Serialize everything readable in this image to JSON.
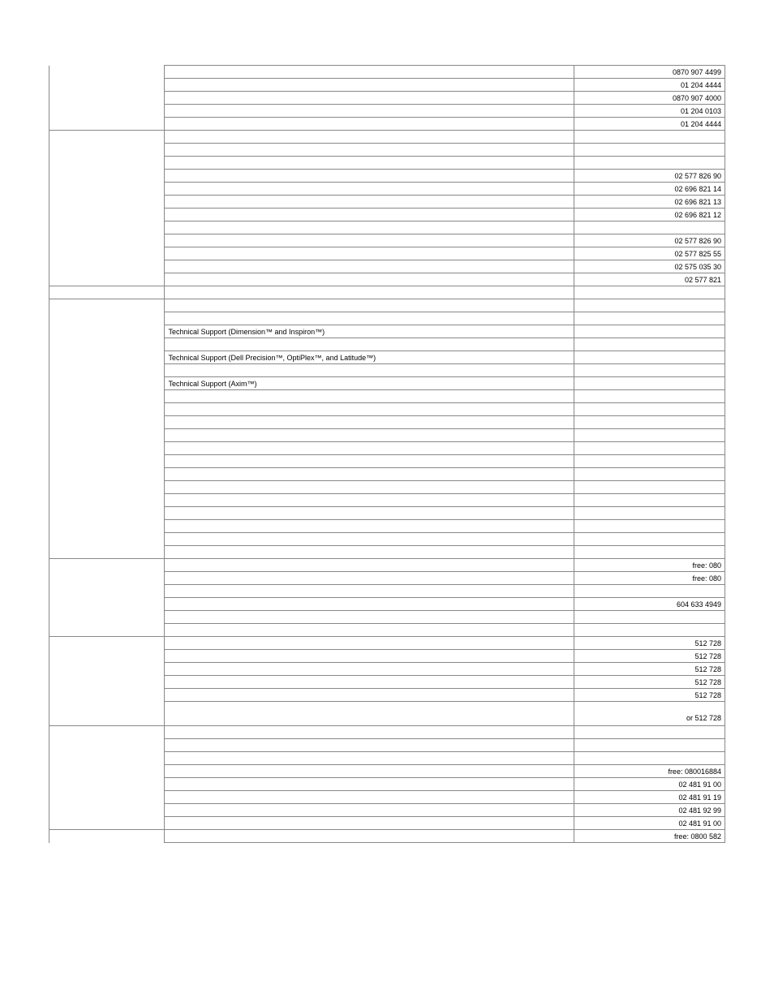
{
  "rows": [
    {
      "desc": "",
      "num": "0870 907 4499"
    },
    {
      "desc": "",
      "num": "01 204 4444"
    },
    {
      "desc": "",
      "num": "0870 907 4000"
    },
    {
      "desc": "",
      "num": "01 204 0103"
    },
    {
      "desc": "",
      "num": "01 204 4444",
      "countryBreak": true
    },
    {
      "desc": "",
      "num": ""
    },
    {
      "desc": "",
      "num": ""
    },
    {
      "desc": "",
      "num": ""
    },
    {
      "desc": "",
      "num": "02 577 826 90"
    },
    {
      "desc": "",
      "num": "02 696 821 14"
    },
    {
      "desc": "",
      "num": "02 696 821 13"
    },
    {
      "desc": "",
      "num": "02 696 821 12"
    },
    {
      "desc": "",
      "num": ""
    },
    {
      "desc": "",
      "num": "02 577 826 90"
    },
    {
      "desc": "",
      "num": "02 577 825 55"
    },
    {
      "desc": "",
      "num": "02 575 035 30"
    },
    {
      "desc": "",
      "num": "02 577 821",
      "countryBreak": true
    },
    {
      "desc": "",
      "num": "",
      "countryBreak": true
    },
    {
      "desc": "",
      "num": ""
    },
    {
      "desc": "",
      "num": ""
    },
    {
      "desc": "Technical Support (Dimension™ and Inspiron™)",
      "num": ""
    },
    {
      "desc": "",
      "num": ""
    },
    {
      "desc": "Technical Support (Dell Precision™, OptiPlex™, and Latitude™)",
      "num": ""
    },
    {
      "desc": "",
      "num": ""
    },
    {
      "desc": "Technical Support (Axim™)",
      "num": ""
    },
    {
      "desc": "",
      "num": ""
    },
    {
      "desc": "",
      "num": ""
    },
    {
      "desc": "",
      "num": ""
    },
    {
      "desc": "",
      "num": ""
    },
    {
      "desc": "",
      "num": ""
    },
    {
      "desc": "",
      "num": ""
    },
    {
      "desc": "",
      "num": ""
    },
    {
      "desc": "",
      "num": ""
    },
    {
      "desc": "",
      "num": ""
    },
    {
      "desc": "",
      "num": ""
    },
    {
      "desc": "",
      "num": ""
    },
    {
      "desc": "",
      "num": ""
    },
    {
      "desc": "",
      "num": "",
      "countryBreak": true
    },
    {
      "desc": "",
      "num": "free: 080"
    },
    {
      "desc": "",
      "num": "free: 080"
    },
    {
      "desc": "",
      "num": ""
    },
    {
      "desc": "",
      "num": "604 633 4949"
    },
    {
      "desc": "",
      "num": ""
    },
    {
      "desc": "",
      "num": "",
      "countryBreak": true
    },
    {
      "desc": "",
      "num": "512 728"
    },
    {
      "desc": "",
      "num": "512 728"
    },
    {
      "desc": "",
      "num": "512 728"
    },
    {
      "desc": "",
      "num": "512 728"
    },
    {
      "desc": "",
      "num": "512 728"
    },
    {
      "desc": "",
      "num": "or 512 728",
      "tall": true,
      "countryBreak": true
    },
    {
      "desc": "",
      "num": ""
    },
    {
      "desc": "",
      "num": ""
    },
    {
      "desc": "",
      "num": ""
    },
    {
      "desc": "",
      "num": "free: 080016884"
    },
    {
      "desc": "",
      "num": "02 481 91 00"
    },
    {
      "desc": "",
      "num": "02 481 91 19"
    },
    {
      "desc": "",
      "num": "02 481 92 99"
    },
    {
      "desc": "",
      "num": "02 481 91 00",
      "countryBreak": true
    },
    {
      "desc": "",
      "num": "free: 0800 582"
    }
  ]
}
